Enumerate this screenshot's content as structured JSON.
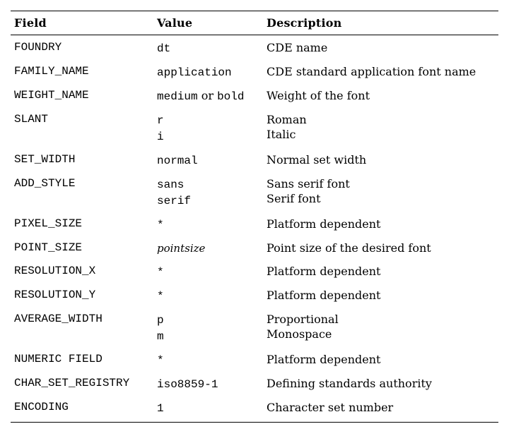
{
  "page": {
    "background": "#ffffff",
    "text_color": "#000000"
  },
  "table": {
    "headers": [
      "Field",
      "Value",
      "Description"
    ],
    "rows": [
      {
        "field": "FOUNDRY",
        "values": [
          "dt"
        ],
        "descriptions": [
          "CDE name"
        ]
      },
      {
        "field": "FAMILY_NAME",
        "values": [
          "application"
        ],
        "descriptions": [
          "CDE standard application font name"
        ]
      },
      {
        "field": "WEIGHT_NAME",
        "values_rich": [
          [
            {
              "text": "medium",
              "style": "mono"
            },
            {
              "text": " or ",
              "style": "serif"
            },
            {
              "text": "bold",
              "style": "mono"
            }
          ]
        ],
        "descriptions": [
          "Weight of the font"
        ]
      },
      {
        "field": "SLANT",
        "values": [
          "r",
          "i"
        ],
        "descriptions": [
          "Roman",
          "Italic"
        ]
      },
      {
        "field": "SET_WIDTH",
        "values": [
          "normal"
        ],
        "descriptions": [
          "Normal set width"
        ]
      },
      {
        "field": "ADD_STYLE",
        "values": [
          "sans",
          "serif"
        ],
        "descriptions": [
          "Sans serif font",
          "Serif font"
        ]
      },
      {
        "field": "PIXEL_SIZE",
        "values": [
          "*"
        ],
        "descriptions": [
          "Platform dependent"
        ]
      },
      {
        "field": "POINT_SIZE",
        "values": [
          "pointsize"
        ],
        "value_style": "italic",
        "descriptions": [
          "Point size of the desired font"
        ]
      },
      {
        "field": "RESOLUTION_X",
        "values": [
          "*"
        ],
        "descriptions": [
          "Platform dependent"
        ]
      },
      {
        "field": "RESOLUTION_Y",
        "values": [
          "*"
        ],
        "descriptions": [
          "Platform dependent"
        ]
      },
      {
        "field": "AVERAGE_WIDTH",
        "values": [
          "p",
          "m"
        ],
        "descriptions": [
          "Proportional",
          "Monospace"
        ]
      },
      {
        "field": "NUMERIC FIELD",
        "values": [
          "*"
        ],
        "descriptions": [
          "Platform dependent"
        ]
      },
      {
        "field": "CHAR_SET_REGISTRY",
        "values": [
          "iso8859-1"
        ],
        "descriptions": [
          "Defining standards authority"
        ]
      },
      {
        "field": "ENCODING",
        "values": [
          "1"
        ],
        "descriptions": [
          "Character set number"
        ]
      }
    ]
  }
}
